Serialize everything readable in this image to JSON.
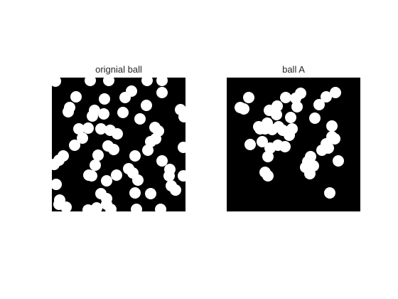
{
  "figure": {
    "panels": [
      {
        "title": "orignial ball",
        "background": "#000000",
        "ball_color": "#ffffff"
      },
      {
        "title": "ball A",
        "background": "#000000",
        "ball_color": "#ffffff"
      }
    ]
  }
}
